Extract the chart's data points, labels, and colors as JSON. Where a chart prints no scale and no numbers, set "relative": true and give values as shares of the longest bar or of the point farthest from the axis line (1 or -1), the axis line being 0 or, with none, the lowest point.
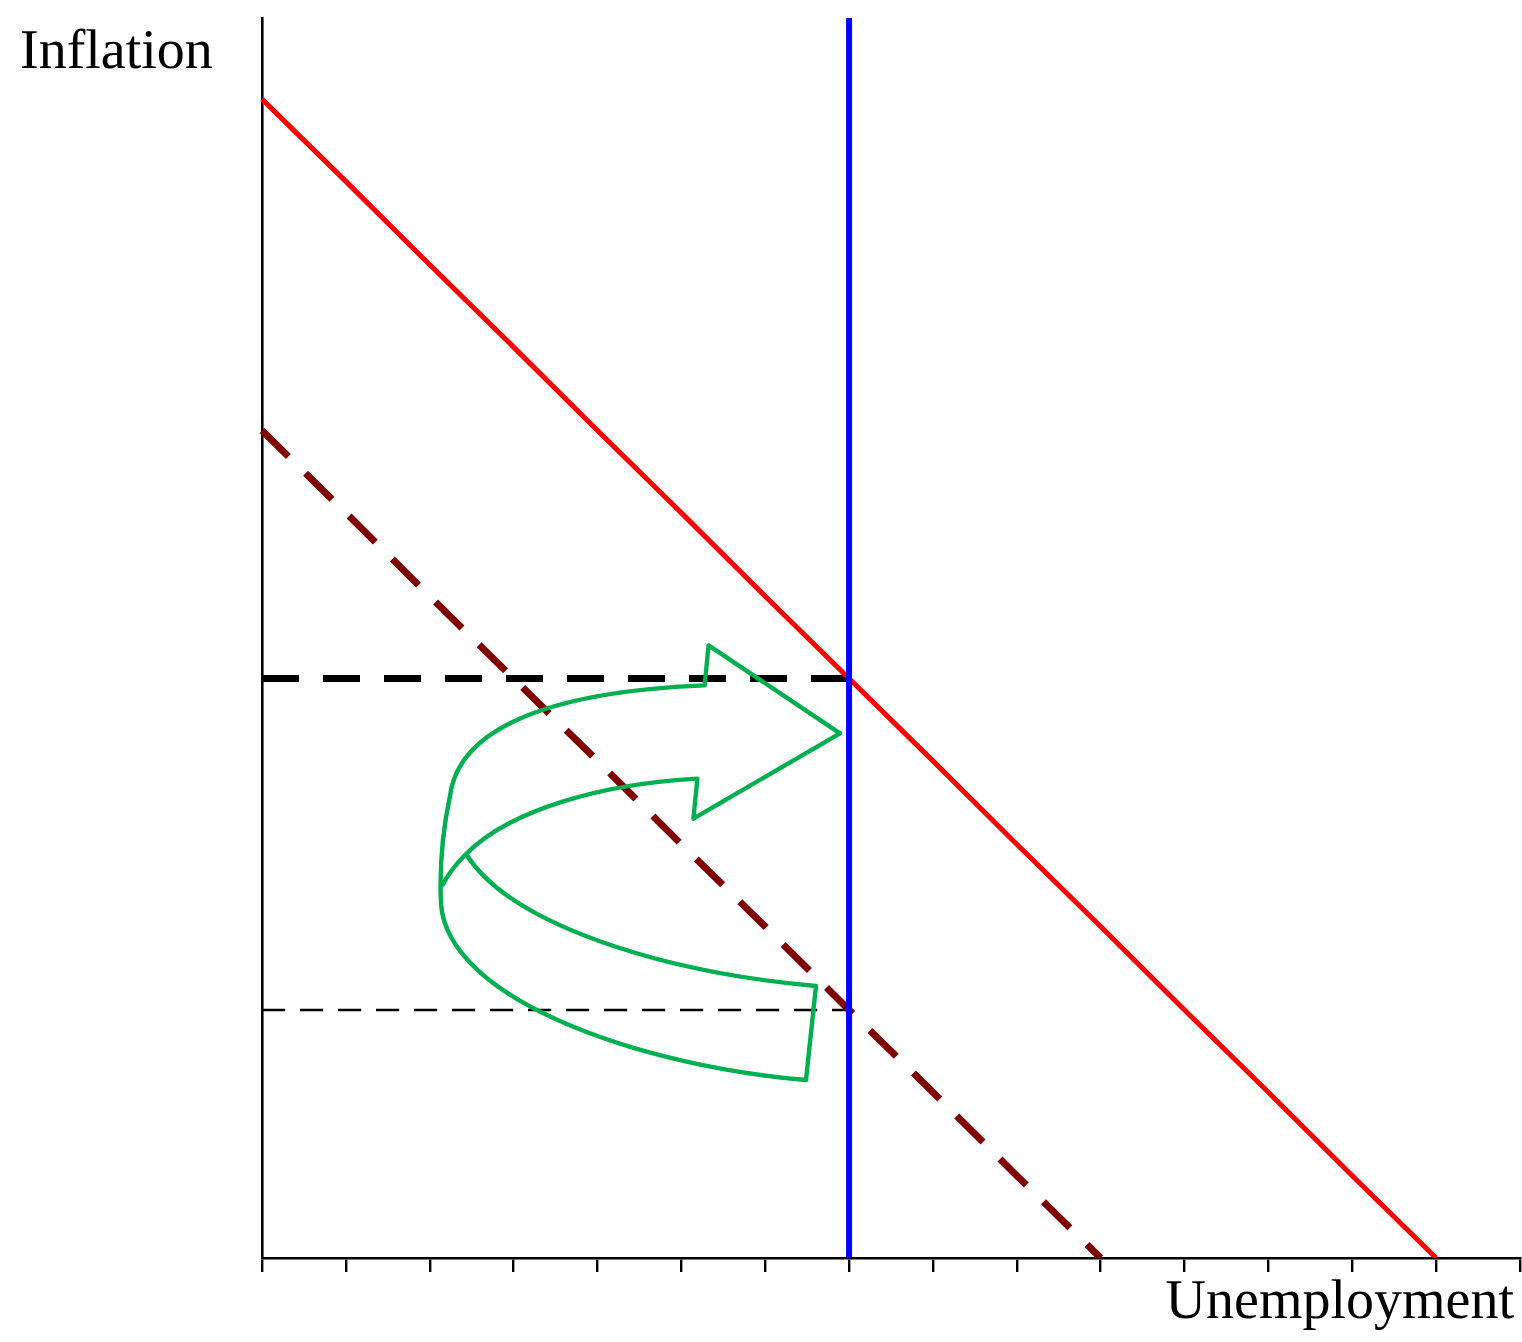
{
  "chart_data": {
    "type": "line",
    "relative": true,
    "xlabel": "Unemployment",
    "ylabel": "Inflation",
    "marker": "none",
    "grid": false,
    "legend": false,
    "categories": [
      null,
      null,
      null,
      null,
      null,
      null,
      null,
      null,
      null,
      null,
      null,
      null,
      null,
      null,
      null,
      null
    ],
    "series": [
      {
        "color": "#ff0000",
        "line_style": "solid",
        "values": [
          1,
          0.929,
          0.857,
          0.786,
          0.714,
          0.643,
          0.571,
          0.5,
          0.429,
          0.357,
          0.286,
          0.214,
          0.143,
          0.071,
          0,
          null
        ]
      },
      {
        "color": "#800000",
        "line_style": "dashed",
        "values": [
          0.714,
          0.643,
          0.571,
          0.5,
          0.429,
          0.357,
          0.286,
          0.214,
          0.143,
          0.071,
          0,
          null,
          null,
          null,
          null,
          null
        ]
      },
      {
        "color": "#000000",
        "line_style": "dashed",
        "values": [
          0.5,
          0.5,
          0.5,
          0.5,
          0.5,
          0.5,
          0.5,
          0.5,
          null,
          null,
          null,
          null,
          null,
          null,
          null,
          null
        ]
      },
      {
        "color": "#000000",
        "line_style": "dashed",
        "values": [
          0.214,
          0.214,
          0.214,
          0.214,
          0.214,
          0.214,
          0.214,
          0.214,
          null,
          null,
          null,
          null,
          null,
          null,
          null,
          null
        ]
      }
    ]
  }
}
